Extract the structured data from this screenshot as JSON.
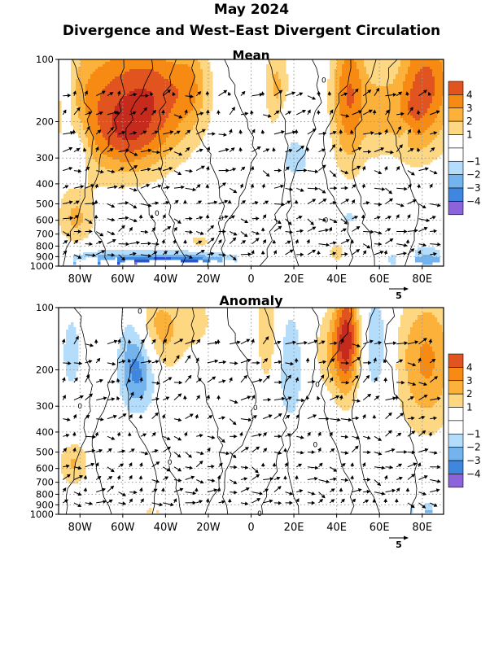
{
  "header": {
    "date": "May 2024",
    "title": "Divergence and West–East Divergent Circulation"
  },
  "palette": {
    "negative": [
      "#b4dcfb",
      "#73b3ee",
      "#3f86de",
      "#2654d2",
      "#8b64dc"
    ],
    "positive": [
      "#fdd782",
      "#fcb23a",
      "#f78a12",
      "#e2541f",
      "#c62a1c"
    ],
    "frame": "#000000",
    "grid": "#999999",
    "contour": "#000000",
    "vector": "#000000"
  },
  "chart_data": [
    {
      "type": "heatmap",
      "title": "Mean",
      "x_ticks": [
        "80W",
        "60W",
        "40W",
        "20W",
        "0",
        "20E",
        "40E",
        "60E",
        "80E"
      ],
      "x_tick_values": [
        -80,
        -60,
        -40,
        -20,
        0,
        20,
        40,
        60,
        80
      ],
      "xlim": [
        -90,
        90
      ],
      "y_ticks": [
        "100",
        "200",
        "300",
        "400",
        "500",
        "600",
        "700",
        "800",
        "900",
        "1000"
      ],
      "y_tick_values": [
        100,
        200,
        300,
        400,
        500,
        600,
        700,
        800,
        900,
        1000
      ],
      "ylim": [
        1000,
        100
      ],
      "y_scale": "log",
      "colorbar_labels": [
        "4",
        "3",
        "2",
        "1",
        "−1",
        "−2",
        "−3",
        "−4"
      ],
      "vector_ref_label": "5",
      "contour_labels": [
        {
          "lon": 34,
          "p": 126,
          "text": "0"
        },
        {
          "lon": -44,
          "p": 555,
          "text": "0"
        },
        {
          "lon": -14,
          "p": 585,
          "text": "0"
        },
        {
          "lon": 35,
          "p": 600,
          "text": "0"
        }
      ],
      "fill_blobs": [
        {
          "lon": -66,
          "p": 160,
          "rl": 20,
          "rp": 0.55,
          "v": 3.6
        },
        {
          "lon": -42,
          "p": 150,
          "rl": 14,
          "rp": 0.45,
          "v": 2.8
        },
        {
          "lon": -58,
          "p": 240,
          "rl": 10,
          "rp": 0.25,
          "v": 1.8
        },
        {
          "lon": -28,
          "p": 130,
          "rl": 5,
          "rp": 0.3,
          "v": 1.4
        },
        {
          "lon": 12,
          "p": 140,
          "rl": 4,
          "rp": 0.45,
          "v": 2.2
        },
        {
          "lon": 46,
          "p": 150,
          "rl": 6,
          "rp": 0.55,
          "v": 4.1
        },
        {
          "lon": 60,
          "p": 180,
          "rl": 5,
          "rp": 0.35,
          "v": 1.9
        },
        {
          "lon": 82,
          "p": 130,
          "rl": 10,
          "rp": 0.5,
          "v": 4.2
        },
        {
          "lon": 74,
          "p": 200,
          "rl": 6,
          "rp": 0.3,
          "v": 1.6
        },
        {
          "lon": -82,
          "p": 590,
          "rl": 6,
          "rp": 0.22,
          "v": 2.1
        },
        {
          "lon": -24,
          "p": 760,
          "rl": 4,
          "rp": 0.06,
          "v": 1.5
        },
        {
          "lon": 40,
          "p": 860,
          "rl": 3,
          "rp": 0.08,
          "v": 1.6
        },
        {
          "lon": -86,
          "p": 150,
          "rl": 3,
          "rp": 0.4,
          "v": -1.6
        },
        {
          "lon": -80,
          "p": 260,
          "rl": 3,
          "rp": 0.25,
          "v": -1.3
        },
        {
          "lon": 20,
          "p": 300,
          "rl": 6,
          "rp": 0.16,
          "v": -1.6
        },
        {
          "lon": 16,
          "p": 200,
          "rl": 4,
          "rp": 0.15,
          "v": -1.2
        },
        {
          "lon": 46,
          "p": 580,
          "rl": 4,
          "rp": 0.08,
          "v": -1.4
        },
        {
          "lon": 73,
          "p": 225,
          "rl": 2,
          "rp": 0.08,
          "v": -1.1
        },
        {
          "lon": -55,
          "p": 960,
          "rl": 35,
          "rp": 0.1,
          "v": -2.9
        },
        {
          "lon": -36,
          "p": 990,
          "rl": 18,
          "rp": 0.06,
          "v": -3.8
        },
        {
          "lon": 82,
          "p": 930,
          "rl": 14,
          "rp": 0.1,
          "v": -2.2
        }
      ]
    },
    {
      "type": "heatmap",
      "title": "Anomaly",
      "x_ticks": [
        "80W",
        "60W",
        "40W",
        "20W",
        "0",
        "20E",
        "40E",
        "60E",
        "80E"
      ],
      "x_tick_values": [
        -80,
        -60,
        -40,
        -20,
        0,
        20,
        40,
        60,
        80
      ],
      "xlim": [
        -90,
        90
      ],
      "y_ticks": [
        "100",
        "200",
        "300",
        "400",
        "500",
        "600",
        "700",
        "800",
        "900",
        "1000"
      ],
      "y_tick_values": [
        100,
        200,
        300,
        400,
        500,
        600,
        700,
        800,
        900,
        1000
      ],
      "ylim": [
        1000,
        100
      ],
      "y_scale": "log",
      "colorbar_labels": [
        "4",
        "3",
        "2",
        "1",
        "−1",
        "−2",
        "−3",
        "−4"
      ],
      "vector_ref_label": "5",
      "contour_labels": [
        {
          "lon": -52,
          "p": 104,
          "text": "0"
        },
        {
          "lon": -80,
          "p": 300,
          "text": "0"
        },
        {
          "lon": 2,
          "p": 305,
          "text": "0"
        },
        {
          "lon": 31,
          "p": 235,
          "text": "0"
        },
        {
          "lon": 30,
          "p": 460,
          "text": "0"
        },
        {
          "lon": -38,
          "p": 560,
          "text": "0"
        },
        {
          "lon": 4,
          "p": 990,
          "text": "0"
        }
      ],
      "fill_blobs": [
        {
          "lon": -43,
          "p": 130,
          "rl": 9,
          "rp": 0.35,
          "v": 2.6
        },
        {
          "lon": -25,
          "p": 115,
          "rl": 5,
          "rp": 0.2,
          "v": 1.3
        },
        {
          "lon": 8,
          "p": 130,
          "rl": 4,
          "rp": 0.5,
          "v": 1.9
        },
        {
          "lon": 45,
          "p": 135,
          "rl": 4,
          "rp": 0.45,
          "v": 4.1
        },
        {
          "lon": 40,
          "p": 160,
          "rl": 7,
          "rp": 0.35,
          "v": 2.3
        },
        {
          "lon": 82,
          "p": 180,
          "rl": 10,
          "rp": 0.55,
          "v": 3.2
        },
        {
          "lon": -83,
          "p": 570,
          "rl": 5,
          "rp": 0.18,
          "v": 2.1
        },
        {
          "lon": -46,
          "p": 960,
          "rl": 3,
          "rp": 0.05,
          "v": 1.4
        },
        {
          "lon": -84,
          "p": 165,
          "rl": 4,
          "rp": 0.4,
          "v": -1.4
        },
        {
          "lon": -52,
          "p": 200,
          "rl": 6,
          "rp": 0.3,
          "v": -3.0
        },
        {
          "lon": -56,
          "p": 150,
          "rl": 5,
          "rp": 0.45,
          "v": -1.4
        },
        {
          "lon": 18,
          "p": 190,
          "rl": 5,
          "rp": 0.5,
          "v": -1.8
        },
        {
          "lon": 58,
          "p": 150,
          "rl": 5,
          "rp": 0.45,
          "v": -1.9
        },
        {
          "lon": 83,
          "p": 960,
          "rl": 7,
          "rp": 0.07,
          "v": -2.1
        }
      ]
    }
  ]
}
